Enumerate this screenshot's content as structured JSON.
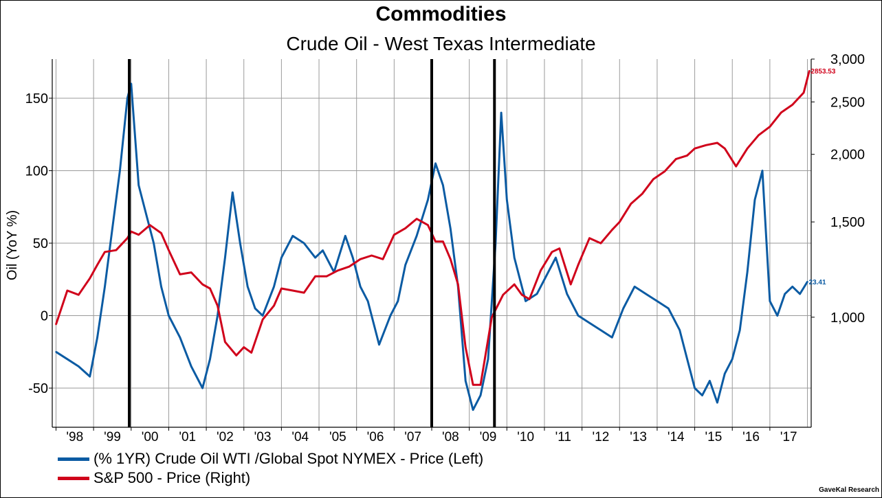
{
  "chart_data": {
    "type": "line",
    "title": "Commodities",
    "subtitle": "Crude Oil - West Texas Intermediate",
    "ylabel_left": "Oil (YoY %)",
    "ylabel_right": "",
    "x_tick_labels": [
      "'98",
      "'99",
      "'00",
      "'01",
      "'02",
      "'03",
      "'04",
      "'05",
      "'06",
      "'07",
      "'08",
      "'09",
      "'10",
      "'11",
      "'12",
      "'13",
      "'14",
      "'15",
      "'16",
      "'17"
    ],
    "x_range_years": [
      1997.9,
      2018.1
    ],
    "y_left_range": [
      -77,
      177
    ],
    "y_left_ticks": [
      -50,
      0,
      50,
      100,
      150
    ],
    "y_left_tick_labels": [
      "-50",
      "0",
      "50",
      "100",
      "150"
    ],
    "y_right_scale": "log",
    "y_right_range": [
      626,
      3000
    ],
    "y_right_ticks": [
      1000,
      1500,
      2000,
      2500,
      3000
    ],
    "y_right_tick_labels": [
      "1,000",
      "1,500",
      "2,000",
      "2,500",
      "3,000"
    ],
    "recession_markers_years": [
      1999.95,
      2008.0,
      2009.67
    ],
    "series": [
      {
        "name": "(% 1YR) Crude Oil WTI /Global Spot NYMEX  - Price  (Left)",
        "axis": "left",
        "color": "#0B5BA3",
        "last_label": "23.41",
        "x": [
          1998.0,
          1998.3,
          1998.6,
          1998.9,
          1999.1,
          1999.3,
          1999.5,
          1999.7,
          1999.9,
          2000.0,
          2000.2,
          2000.4,
          2000.6,
          2000.8,
          2001.0,
          2001.3,
          2001.6,
          2001.9,
          2002.1,
          2002.3,
          2002.5,
          2002.7,
          2002.9,
          2003.1,
          2003.3,
          2003.5,
          2003.8,
          2004.0,
          2004.3,
          2004.6,
          2004.9,
          2005.1,
          2005.4,
          2005.7,
          2005.9,
          2006.1,
          2006.3,
          2006.6,
          2006.9,
          2007.1,
          2007.3,
          2007.6,
          2007.9,
          2008.1,
          2008.3,
          2008.5,
          2008.7,
          2008.9,
          2009.1,
          2009.3,
          2009.5,
          2009.7,
          2009.85,
          2010.0,
          2010.2,
          2010.5,
          2010.8,
          2011.0,
          2011.3,
          2011.6,
          2011.9,
          2012.2,
          2012.5,
          2012.8,
          2013.1,
          2013.4,
          2013.7,
          2014.0,
          2014.3,
          2014.6,
          2014.8,
          2015.0,
          2015.2,
          2015.4,
          2015.6,
          2015.8,
          2016.0,
          2016.2,
          2016.4,
          2016.6,
          2016.8,
          2017.0,
          2017.2,
          2017.4,
          2017.6,
          2017.8,
          2018.0
        ],
        "values": [
          -25,
          -30,
          -35,
          -42,
          -15,
          20,
          60,
          100,
          150,
          160,
          90,
          70,
          50,
          20,
          0,
          -15,
          -35,
          -50,
          -30,
          0,
          40,
          85,
          50,
          20,
          5,
          0,
          20,
          40,
          55,
          50,
          40,
          45,
          30,
          55,
          40,
          20,
          10,
          -20,
          0,
          10,
          35,
          55,
          80,
          105,
          90,
          60,
          20,
          -45,
          -65,
          -55,
          -30,
          50,
          140,
          80,
          40,
          10,
          15,
          25,
          40,
          15,
          0,
          -5,
          -10,
          -15,
          5,
          20,
          15,
          10,
          5,
          -10,
          -30,
          -50,
          -55,
          -45,
          -60,
          -40,
          -30,
          -10,
          30,
          80,
          100,
          10,
          0,
          15,
          20,
          15,
          23.41
        ]
      },
      {
        "name": "S&P 500 - Price  (Right)",
        "axis": "right",
        "color": "#D0021B",
        "last_label": "2853.53",
        "x": [
          1998.0,
          1998.3,
          1998.6,
          1998.9,
          1999.1,
          1999.3,
          1999.6,
          1999.9,
          2000.0,
          2000.2,
          2000.5,
          2000.8,
          2001.0,
          2001.3,
          2001.6,
          2001.9,
          2002.1,
          2002.3,
          2002.5,
          2002.8,
          2003.0,
          2003.2,
          2003.5,
          2003.8,
          2004.0,
          2004.3,
          2004.6,
          2004.9,
          2005.2,
          2005.5,
          2005.8,
          2006.1,
          2006.4,
          2006.7,
          2007.0,
          2007.3,
          2007.6,
          2007.9,
          2008.1,
          2008.3,
          2008.5,
          2008.7,
          2008.9,
          2009.1,
          2009.3,
          2009.6,
          2009.9,
          2010.2,
          2010.4,
          2010.6,
          2010.9,
          2011.2,
          2011.4,
          2011.7,
          2011.9,
          2012.2,
          2012.5,
          2012.8,
          2013.0,
          2013.3,
          2013.6,
          2013.9,
          2014.2,
          2014.5,
          2014.8,
          2015.0,
          2015.3,
          2015.6,
          2015.8,
          2016.1,
          2016.4,
          2016.7,
          2017.0,
          2017.3,
          2017.6,
          2017.9,
          2018.05
        ],
        "values": [
          970,
          1120,
          1100,
          1180,
          1250,
          1320,
          1330,
          1400,
          1440,
          1420,
          1480,
          1430,
          1330,
          1200,
          1210,
          1150,
          1130,
          1050,
          900,
          850,
          880,
          860,
          990,
          1050,
          1130,
          1120,
          1110,
          1190,
          1190,
          1220,
          1240,
          1280,
          1300,
          1280,
          1420,
          1460,
          1520,
          1480,
          1380,
          1380,
          1280,
          1150,
          880,
          750,
          750,
          1000,
          1100,
          1150,
          1100,
          1080,
          1220,
          1320,
          1340,
          1150,
          1250,
          1400,
          1370,
          1450,
          1500,
          1620,
          1690,
          1800,
          1860,
          1960,
          1990,
          2050,
          2080,
          2100,
          2050,
          1900,
          2050,
          2170,
          2250,
          2390,
          2470,
          2600,
          2853.53
        ]
      }
    ]
  },
  "legend": {
    "item1": "(% 1YR) Crude Oil WTI /Global Spot NYMEX  - Price  (Left)",
    "item2": "S&P 500 - Price  (Right)"
  },
  "source": "GaveKal Research"
}
